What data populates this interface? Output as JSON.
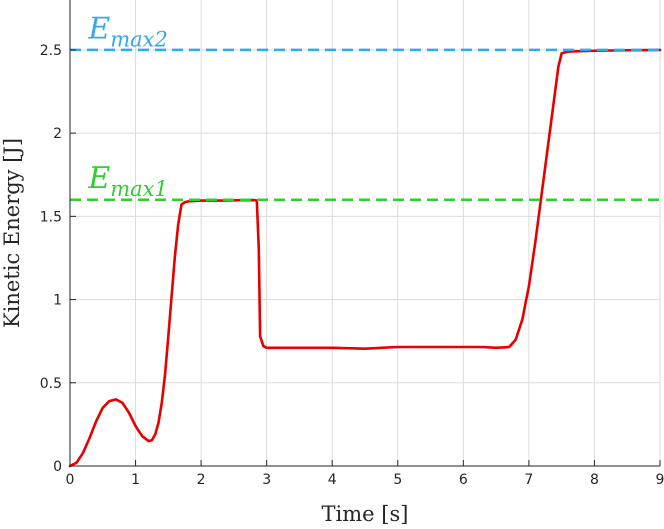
{
  "chart_data": {
    "type": "line",
    "xlabel": "Time [s]",
    "ylabel": "Kinetic Energy [J]",
    "xlim": [
      0,
      9
    ],
    "ylim": [
      0,
      2.8
    ],
    "xticks": [
      0,
      1,
      2,
      3,
      4,
      5,
      6,
      7,
      8,
      9
    ],
    "xtick_labels": [
      "0",
      "1",
      "2",
      "3",
      "4",
      "5",
      "6",
      "7",
      "8",
      "9"
    ],
    "yticks": [
      0,
      0.5,
      1,
      1.5,
      2,
      2.5
    ],
    "ytick_labels": [
      "0",
      "0.5",
      "1",
      "1.5",
      "2",
      "2.5"
    ],
    "grid": true,
    "series": [
      {
        "color": "#e60000",
        "style": "solid",
        "x": [
          0,
          0.1,
          0.2,
          0.3,
          0.4,
          0.5,
          0.6,
          0.7,
          0.8,
          0.9,
          1.0,
          1.1,
          1.2,
          1.25,
          1.3,
          1.35,
          1.4,
          1.45,
          1.5,
          1.55,
          1.6,
          1.65,
          1.7,
          1.75,
          1.8,
          2.0,
          2.3,
          2.6,
          2.8,
          2.85,
          2.88,
          2.9,
          2.95,
          3.0,
          3.2,
          3.5,
          4.0,
          4.5,
          5.0,
          5.5,
          6.0,
          6.3,
          6.5,
          6.7,
          6.8,
          6.9,
          7.0,
          7.1,
          7.2,
          7.3,
          7.4,
          7.45,
          7.5,
          7.6,
          8.0,
          8.5,
          9.0
        ],
        "y": [
          0,
          0.02,
          0.08,
          0.17,
          0.27,
          0.35,
          0.39,
          0.4,
          0.38,
          0.32,
          0.24,
          0.18,
          0.15,
          0.155,
          0.19,
          0.26,
          0.38,
          0.55,
          0.78,
          1.02,
          1.26,
          1.45,
          1.57,
          1.585,
          1.59,
          1.595,
          1.595,
          1.597,
          1.598,
          1.595,
          1.3,
          0.78,
          0.72,
          0.71,
          0.71,
          0.71,
          0.71,
          0.705,
          0.715,
          0.715,
          0.715,
          0.715,
          0.71,
          0.715,
          0.76,
          0.88,
          1.08,
          1.35,
          1.65,
          1.95,
          2.25,
          2.4,
          2.48,
          2.49,
          2.495,
          2.498,
          2.5
        ]
      },
      {
        "name": "Emax2",
        "color": "#33a8ee",
        "style": "dashed",
        "x": [
          0,
          9
        ],
        "y": [
          2.5,
          2.5
        ]
      },
      {
        "name": "Emax1",
        "color": "#2fcf2f",
        "style": "dashed",
        "x": [
          0,
          9
        ],
        "y": [
          1.6,
          1.6
        ]
      }
    ],
    "annotations": [
      {
        "base": "E",
        "sub": "max2",
        "color": "#33a8ee",
        "x": 0.28,
        "y": 2.57
      },
      {
        "base": "E",
        "sub": "max1",
        "color": "#2fcf2f",
        "x": 0.28,
        "y": 1.67
      }
    ]
  }
}
